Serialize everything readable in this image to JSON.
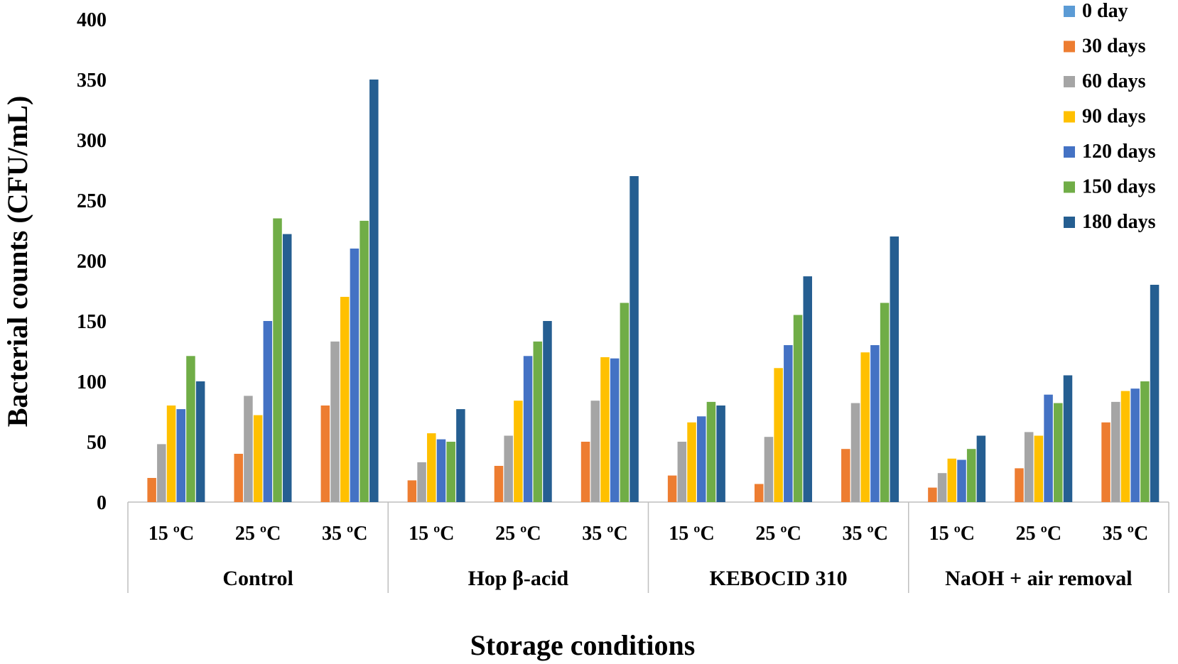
{
  "chart_data": {
    "type": "bar",
    "title": "",
    "xlabel": "Storage conditions",
    "ylabel": "Bacterial counts (CFU/mL)",
    "ylim": [
      0,
      400
    ],
    "yticks": [
      "0",
      "50",
      "100",
      "150",
      "200",
      "250",
      "300",
      "350",
      "400"
    ],
    "grid": false,
    "legend_position": "top-right",
    "groups": [
      {
        "label": "Control",
        "categories": [
          "15 ºC",
          "25 ºC",
          "35 ºC"
        ]
      },
      {
        "label": "Hop β-acid",
        "categories": [
          "15 ºC",
          "25 ºC",
          "35 ºC"
        ]
      },
      {
        "label": "KEBOCID 310",
        "categories": [
          "15 ºC",
          "25 ºC",
          "35 ºC"
        ]
      },
      {
        "label": "NaOH + air removal",
        "categories": [
          "15 ºC",
          "25 ºC",
          "35 ºC"
        ]
      }
    ],
    "series": [
      {
        "name": "0 day",
        "color": "#5B9BD5",
        "values": [
          0,
          0,
          0,
          0,
          0,
          0,
          0,
          0,
          0,
          0,
          0,
          0
        ]
      },
      {
        "name": "30 days",
        "color": "#ED7D31",
        "values": [
          20,
          40,
          80,
          18,
          30,
          50,
          22,
          15,
          44,
          12,
          28,
          66
        ]
      },
      {
        "name": "60 days",
        "color": "#A5A5A5",
        "values": [
          48,
          88,
          133,
          33,
          55,
          84,
          50,
          54,
          82,
          24,
          58,
          83
        ]
      },
      {
        "name": "90 days",
        "color": "#FFC000",
        "values": [
          80,
          72,
          170,
          57,
          84,
          120,
          66,
          111,
          124,
          36,
          55,
          92
        ]
      },
      {
        "name": "120 days",
        "color": "#4472C4",
        "values": [
          77,
          150,
          210,
          52,
          121,
          119,
          71,
          130,
          130,
          35,
          89,
          94
        ]
      },
      {
        "name": "150 days",
        "color": "#70AD47",
        "values": [
          121,
          235,
          233,
          50,
          133,
          165,
          83,
          155,
          165,
          44,
          82,
          100
        ]
      },
      {
        "name": "180 days",
        "color": "#255E91",
        "values": [
          100,
          222,
          350,
          77,
          150,
          270,
          80,
          187,
          220,
          55,
          105,
          180
        ]
      }
    ]
  }
}
